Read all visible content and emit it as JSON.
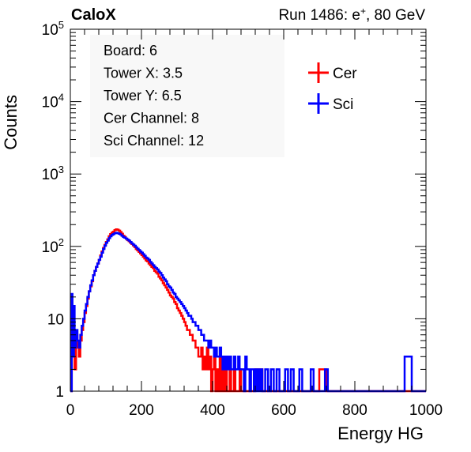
{
  "header": {
    "left_label": "CaloX",
    "right_label": "Run 1486: e",
    "right_label_sup": "+",
    "right_label_tail": ", 80 GeV"
  },
  "info_box": {
    "lines": [
      "Board: 6",
      "Tower X: 3.5",
      "Tower Y: 6.5",
      "Cer Channel: 8",
      "Sci Channel: 12"
    ]
  },
  "legend": {
    "placement": "top-right",
    "entries": [
      {
        "label": "Cer",
        "color": "#ff0000"
      },
      {
        "label": "Sci",
        "color": "#0000ff"
      }
    ]
  },
  "chart_data": {
    "type": "line",
    "xlabel": "Energy HG",
    "ylabel": "Counts",
    "xlim": [
      0,
      1000
    ],
    "ylim": [
      1,
      100000
    ],
    "ylog": true,
    "x_ticks": [
      0,
      200,
      400,
      600,
      800,
      1000
    ],
    "x_tick_labels": [
      "0",
      "200",
      "400",
      "600",
      "800",
      "1000"
    ],
    "y_ticks": [
      1,
      10,
      100,
      1000,
      10000,
      100000
    ],
    "y_tick_labels": [
      {
        "base": "1",
        "exp": ""
      },
      {
        "base": "10",
        "exp": ""
      },
      {
        "base": "10",
        "exp": "2"
      },
      {
        "base": "10",
        "exp": "3"
      },
      {
        "base": "10",
        "exp": "4"
      },
      {
        "base": "10",
        "exp": "5"
      }
    ],
    "grid": false,
    "series": [
      {
        "name": "Cer",
        "color": "#ff0000",
        "points": [
          [
            0,
            1
          ],
          [
            4,
            9
          ],
          [
            8,
            5
          ],
          [
            12,
            2
          ],
          [
            16,
            6
          ],
          [
            20,
            4
          ],
          [
            24,
            3
          ],
          [
            28,
            5
          ],
          [
            32,
            7
          ],
          [
            36,
            9
          ],
          [
            40,
            12
          ],
          [
            44,
            15
          ],
          [
            48,
            19
          ],
          [
            52,
            24
          ],
          [
            56,
            28
          ],
          [
            60,
            33
          ],
          [
            64,
            40
          ],
          [
            68,
            46
          ],
          [
            72,
            52
          ],
          [
            76,
            58
          ],
          [
            80,
            65
          ],
          [
            84,
            75
          ],
          [
            88,
            85
          ],
          [
            92,
            95
          ],
          [
            96,
            105
          ],
          [
            100,
            115
          ],
          [
            104,
            125
          ],
          [
            108,
            138
          ],
          [
            112,
            148
          ],
          [
            116,
            155
          ],
          [
            120,
            160
          ],
          [
            124,
            168
          ],
          [
            128,
            172
          ],
          [
            132,
            170
          ],
          [
            136,
            165
          ],
          [
            140,
            158
          ],
          [
            144,
            150
          ],
          [
            148,
            140
          ],
          [
            152,
            135
          ],
          [
            156,
            128
          ],
          [
            160,
            122
          ],
          [
            164,
            118
          ],
          [
            168,
            112
          ],
          [
            172,
            108
          ],
          [
            176,
            103
          ],
          [
            180,
            98
          ],
          [
            184,
            92
          ],
          [
            188,
            88
          ],
          [
            192,
            84
          ],
          [
            196,
            80
          ],
          [
            200,
            76
          ],
          [
            204,
            72
          ],
          [
            208,
            68
          ],
          [
            212,
            64
          ],
          [
            216,
            62
          ],
          [
            220,
            58
          ],
          [
            224,
            55
          ],
          [
            228,
            52
          ],
          [
            232,
            50
          ],
          [
            236,
            46
          ],
          [
            240,
            44
          ],
          [
            244,
            42
          ],
          [
            248,
            38
          ],
          [
            252,
            36
          ],
          [
            256,
            34
          ],
          [
            260,
            31
          ],
          [
            264,
            29
          ],
          [
            268,
            27
          ],
          [
            272,
            25
          ],
          [
            276,
            23
          ],
          [
            280,
            21
          ],
          [
            284,
            20
          ],
          [
            288,
            19
          ],
          [
            292,
            17
          ],
          [
            296,
            16
          ],
          [
            300,
            14
          ],
          [
            304,
            13
          ],
          [
            308,
            12
          ],
          [
            312,
            11
          ],
          [
            316,
            10
          ],
          [
            320,
            9
          ],
          [
            324,
            8
          ],
          [
            328,
            7
          ],
          [
            332,
            7
          ],
          [
            336,
            6
          ],
          [
            340,
            6
          ],
          [
            344,
            5
          ],
          [
            348,
            5
          ],
          [
            352,
            4
          ],
          [
            356,
            4
          ],
          [
            360,
            3
          ],
          [
            364,
            3
          ],
          [
            368,
            4
          ],
          [
            372,
            2
          ],
          [
            376,
            3
          ],
          [
            380,
            2
          ],
          [
            384,
            4
          ],
          [
            388,
            2
          ],
          [
            392,
            3
          ],
          [
            396,
            1
          ],
          [
            400,
            2
          ],
          [
            404,
            3
          ],
          [
            408,
            1
          ],
          [
            412,
            2
          ],
          [
            416,
            1
          ],
          [
            420,
            3
          ],
          [
            424,
            1
          ],
          [
            428,
            2
          ],
          [
            432,
            1
          ],
          [
            436,
            2
          ],
          [
            440,
            1
          ],
          [
            444,
            1
          ],
          [
            448,
            2
          ],
          [
            452,
            1
          ],
          [
            456,
            1
          ],
          [
            460,
            2
          ],
          [
            464,
            1
          ],
          [
            468,
            1
          ],
          [
            472,
            1
          ],
          [
            476,
            2
          ],
          [
            480,
            1
          ],
          [
            500,
            1
          ],
          [
            520,
            2
          ],
          [
            540,
            1
          ],
          [
            560,
            1
          ],
          [
            600,
            1
          ],
          [
            640,
            1
          ],
          [
            700,
            2
          ],
          [
            720,
            1
          ],
          [
            1000,
            1
          ]
        ]
      },
      {
        "name": "Sci",
        "color": "#0000ff",
        "points": [
          [
            0,
            1
          ],
          [
            4,
            22
          ],
          [
            6,
            8
          ],
          [
            8,
            3
          ],
          [
            10,
            15
          ],
          [
            12,
            4
          ],
          [
            16,
            7
          ],
          [
            20,
            5
          ],
          [
            24,
            4
          ],
          [
            28,
            6
          ],
          [
            32,
            8
          ],
          [
            36,
            10
          ],
          [
            40,
            13
          ],
          [
            44,
            16
          ],
          [
            48,
            20
          ],
          [
            52,
            24
          ],
          [
            56,
            29
          ],
          [
            60,
            34
          ],
          [
            64,
            40
          ],
          [
            68,
            46
          ],
          [
            72,
            52
          ],
          [
            76,
            58
          ],
          [
            80,
            65
          ],
          [
            84,
            72
          ],
          [
            88,
            82
          ],
          [
            92,
            92
          ],
          [
            96,
            102
          ],
          [
            100,
            112
          ],
          [
            104,
            120
          ],
          [
            108,
            130
          ],
          [
            112,
            138
          ],
          [
            116,
            144
          ],
          [
            120,
            148
          ],
          [
            124,
            152
          ],
          [
            128,
            154
          ],
          [
            132,
            152
          ],
          [
            136,
            150
          ],
          [
            140,
            146
          ],
          [
            144,
            140
          ],
          [
            148,
            135
          ],
          [
            152,
            132
          ],
          [
            156,
            128
          ],
          [
            160,
            124
          ],
          [
            164,
            120
          ],
          [
            168,
            115
          ],
          [
            172,
            110
          ],
          [
            176,
            106
          ],
          [
            180,
            102
          ],
          [
            184,
            97
          ],
          [
            188,
            93
          ],
          [
            192,
            89
          ],
          [
            196,
            85
          ],
          [
            200,
            82
          ],
          [
            204,
            78
          ],
          [
            208,
            74
          ],
          [
            212,
            70
          ],
          [
            216,
            68
          ],
          [
            220,
            65
          ],
          [
            224,
            61
          ],
          [
            228,
            58
          ],
          [
            232,
            55
          ],
          [
            236,
            52
          ],
          [
            240,
            50
          ],
          [
            244,
            48
          ],
          [
            248,
            45
          ],
          [
            252,
            43
          ],
          [
            256,
            40
          ],
          [
            260,
            37
          ],
          [
            264,
            35
          ],
          [
            268,
            33
          ],
          [
            272,
            30
          ],
          [
            276,
            28
          ],
          [
            280,
            27
          ],
          [
            284,
            25
          ],
          [
            288,
            23
          ],
          [
            292,
            22
          ],
          [
            296,
            20
          ],
          [
            300,
            19
          ],
          [
            304,
            18
          ],
          [
            308,
            17
          ],
          [
            312,
            16
          ],
          [
            316,
            15
          ],
          [
            320,
            14
          ],
          [
            324,
            13
          ],
          [
            328,
            12
          ],
          [
            332,
            11
          ],
          [
            336,
            11
          ],
          [
            340,
            10
          ],
          [
            344,
            9
          ],
          [
            348,
            9
          ],
          [
            352,
            8
          ],
          [
            356,
            8
          ],
          [
            360,
            7
          ],
          [
            364,
            7
          ],
          [
            368,
            6
          ],
          [
            372,
            6
          ],
          [
            376,
            5
          ],
          [
            380,
            5
          ],
          [
            384,
            5
          ],
          [
            388,
            4
          ],
          [
            392,
            5
          ],
          [
            396,
            4
          ],
          [
            400,
            4
          ],
          [
            404,
            3
          ],
          [
            408,
            4
          ],
          [
            412,
            3
          ],
          [
            416,
            3
          ],
          [
            420,
            4
          ],
          [
            424,
            3
          ],
          [
            428,
            2
          ],
          [
            432,
            3
          ],
          [
            436,
            2
          ],
          [
            440,
            3
          ],
          [
            444,
            2
          ],
          [
            448,
            3
          ],
          [
            452,
            2
          ],
          [
            456,
            2
          ],
          [
            460,
            3
          ],
          [
            464,
            2
          ],
          [
            468,
            2
          ],
          [
            472,
            3
          ],
          [
            476,
            2
          ],
          [
            480,
            2
          ],
          [
            484,
            2
          ],
          [
            488,
            1
          ],
          [
            492,
            3
          ],
          [
            496,
            2
          ],
          [
            500,
            2
          ],
          [
            504,
            1
          ],
          [
            508,
            2
          ],
          [
            512,
            2
          ],
          [
            516,
            1
          ],
          [
            520,
            2
          ],
          [
            524,
            1
          ],
          [
            528,
            2
          ],
          [
            532,
            1
          ],
          [
            536,
            2
          ],
          [
            540,
            1
          ],
          [
            548,
            2
          ],
          [
            556,
            1
          ],
          [
            564,
            2
          ],
          [
            572,
            1
          ],
          [
            580,
            2
          ],
          [
            588,
            1
          ],
          [
            596,
            1
          ],
          [
            604,
            2
          ],
          [
            612,
            1
          ],
          [
            620,
            2
          ],
          [
            628,
            1
          ],
          [
            636,
            1
          ],
          [
            644,
            2
          ],
          [
            652,
            1
          ],
          [
            660,
            1
          ],
          [
            668,
            1
          ],
          [
            676,
            2
          ],
          [
            684,
            1
          ],
          [
            692,
            1
          ],
          [
            700,
            1
          ],
          [
            708,
            1
          ],
          [
            716,
            2
          ],
          [
            724,
            1
          ],
          [
            740,
            1
          ],
          [
            760,
            1
          ],
          [
            780,
            1
          ],
          [
            800,
            1
          ],
          [
            820,
            1
          ],
          [
            860,
            1
          ],
          [
            900,
            1
          ],
          [
            940,
            3
          ],
          [
            960,
            1
          ],
          [
            1000,
            1
          ]
        ]
      }
    ]
  }
}
